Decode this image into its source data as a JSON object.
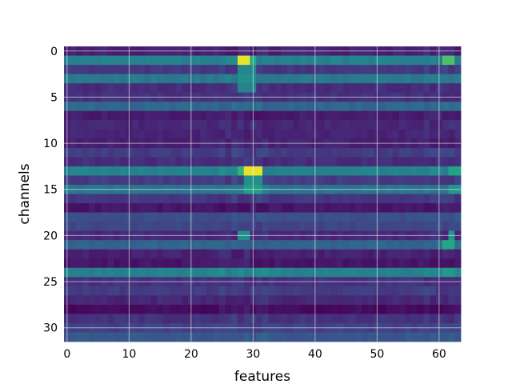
{
  "chart_data": {
    "type": "heatmap",
    "title": "",
    "xlabel": "features",
    "ylabel": "channels",
    "n_cols": 64,
    "n_rows": 32,
    "xlim": [
      -0.5,
      63.5
    ],
    "ylim": [
      31.5,
      -0.5
    ],
    "x_ticks": [
      0,
      10,
      20,
      30,
      40,
      50,
      60
    ],
    "y_ticks": [
      0,
      5,
      10,
      15,
      20,
      25,
      30
    ],
    "grid": true,
    "colormap": "viridis",
    "value_range": [
      0,
      1
    ],
    "row_base": [
      0.12,
      0.55,
      0.2,
      0.5,
      0.16,
      0.18,
      0.42,
      0.1,
      0.14,
      0.13,
      0.12,
      0.22,
      0.16,
      0.55,
      0.22,
      0.48,
      0.2,
      0.08,
      0.3,
      0.26,
      0.15,
      0.4,
      0.12,
      0.08,
      0.55,
      0.18,
      0.22,
      0.14,
      0.04,
      0.18,
      0.24,
      0.34
    ],
    "hotspots": [
      {
        "row": 1,
        "cols": [
          28,
          29
        ],
        "value": 0.98
      },
      {
        "row": 1,
        "cols": [
          30
        ],
        "value": 0.75
      },
      {
        "row": 1,
        "cols": [
          61,
          62
        ],
        "value": 0.82
      },
      {
        "row": 2,
        "cols": [
          28,
          29,
          30
        ],
        "value": 0.58
      },
      {
        "row": 3,
        "cols": [
          28,
          29,
          30
        ],
        "value": 0.62
      },
      {
        "row": 4,
        "cols": [
          28,
          29,
          30
        ],
        "value": 0.55
      },
      {
        "row": 13,
        "cols": [
          29,
          30,
          31
        ],
        "value": 0.98
      },
      {
        "row": 13,
        "cols": [
          28
        ],
        "value": 0.78
      },
      {
        "row": 13,
        "cols": [
          62,
          63
        ],
        "value": 0.72
      },
      {
        "row": 14,
        "cols": [
          29,
          30,
          31
        ],
        "value": 0.62
      },
      {
        "row": 15,
        "cols": [
          29,
          30,
          31
        ],
        "value": 0.7
      },
      {
        "row": 15,
        "cols": [
          62,
          63
        ],
        "value": 0.66
      },
      {
        "row": 20,
        "cols": [
          28,
          29
        ],
        "value": 0.62
      },
      {
        "row": 20,
        "cols": [
          62
        ],
        "value": 0.66
      },
      {
        "row": 21,
        "cols": [
          61,
          62
        ],
        "value": 0.74
      },
      {
        "row": 24,
        "cols": [
          61,
          62
        ],
        "value": 0.68
      }
    ]
  }
}
